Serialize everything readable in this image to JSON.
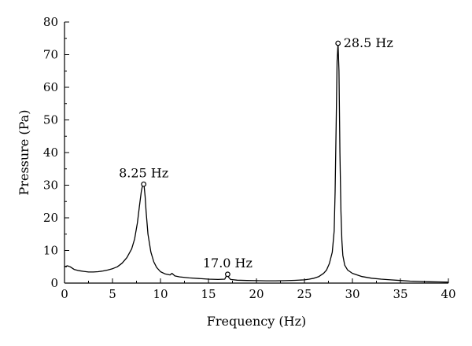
{
  "chart_data": {
    "type": "line",
    "xlabel": "Frequency (Hz)",
    "ylabel": "Pressure (Pa)",
    "xlim": [
      0,
      40
    ],
    "ylim": [
      0,
      80
    ],
    "x_ticks": [
      0,
      5,
      10,
      15,
      20,
      25,
      30,
      35,
      40
    ],
    "y_ticks": [
      0,
      10,
      20,
      30,
      40,
      50,
      60,
      70,
      80
    ],
    "grid": false,
    "series": [
      {
        "x": [
          0,
          0.3,
          0.6,
          1,
          1.5,
          2,
          2.5,
          3,
          3.5,
          4,
          4.5,
          5,
          5.5,
          6,
          6.5,
          7,
          7.3,
          7.6,
          7.8,
          8.0,
          8.1,
          8.2,
          8.25,
          8.3,
          8.4,
          8.5,
          8.7,
          9.0,
          9.3,
          9.6,
          10,
          10.5,
          11,
          11.2,
          11.5,
          12,
          13,
          14,
          15,
          16,
          16.7,
          16.9,
          17.0,
          17.1,
          17.3,
          18,
          19,
          20,
          21,
          22,
          23,
          24,
          25,
          25.5,
          26,
          26.5,
          27,
          27.3,
          27.6,
          27.9,
          28.1,
          28.2,
          28.3,
          28.4,
          28.5,
          28.6,
          28.7,
          28.8,
          28.9,
          29.0,
          29.2,
          29.5,
          30,
          31,
          32,
          33,
          34,
          35,
          36,
          37,
          38,
          39,
          40
        ],
        "y": [
          5.0,
          5.3,
          5.0,
          4.2,
          3.8,
          3.6,
          3.4,
          3.4,
          3.5,
          3.7,
          4.0,
          4.4,
          5.0,
          6.1,
          7.8,
          10.5,
          13.5,
          18.5,
          23.5,
          28.0,
          29.5,
          30.1,
          30.3,
          29.5,
          26.5,
          22.0,
          15.0,
          9.5,
          6.5,
          4.8,
          3.5,
          2.8,
          2.5,
          3.0,
          2.2,
          1.9,
          1.6,
          1.4,
          1.2,
          1.1,
          1.2,
          2.4,
          2.7,
          1.8,
          1.1,
          0.9,
          0.8,
          0.75,
          0.7,
          0.7,
          0.75,
          0.85,
          1.0,
          1.2,
          1.5,
          2.0,
          3.0,
          4.0,
          6.0,
          9.5,
          16.0,
          28.0,
          48.0,
          68.0,
          73.5,
          65.0,
          40.0,
          22.0,
          13.0,
          8.5,
          5.5,
          4.0,
          3.0,
          2.0,
          1.5,
          1.2,
          1.0,
          0.8,
          0.6,
          0.5,
          0.4,
          0.35,
          0.3
        ]
      }
    ],
    "annotations": [
      {
        "text": "8.25 Hz",
        "x": 8.25,
        "y": 30.3
      },
      {
        "text": "17.0 Hz",
        "x": 17.0,
        "y": 2.7
      },
      {
        "text": "28.5 Hz",
        "x": 28.5,
        "y": 73.5
      }
    ]
  }
}
